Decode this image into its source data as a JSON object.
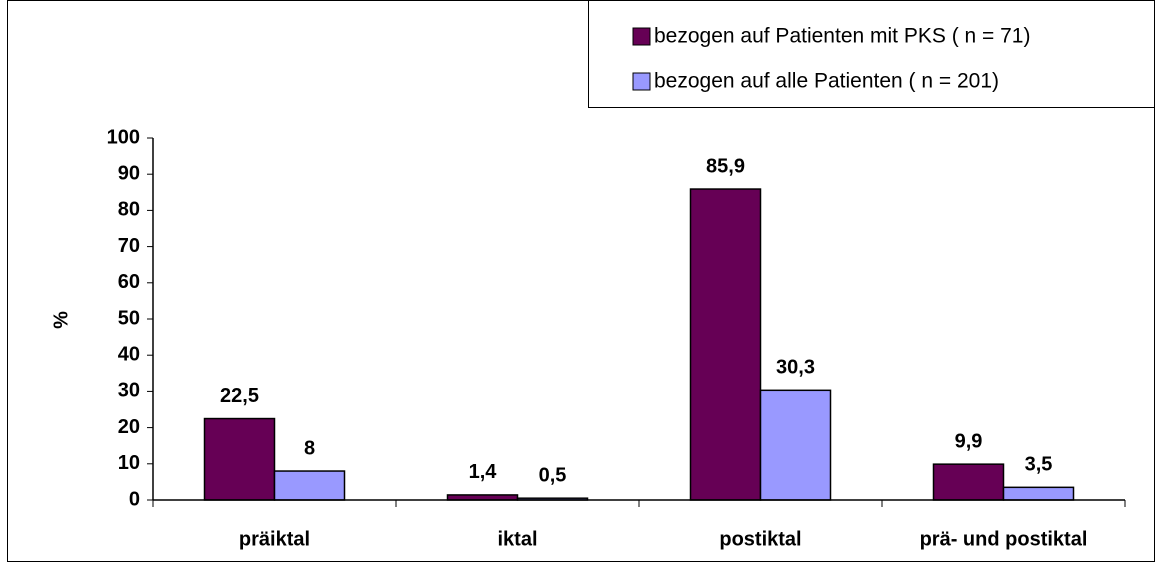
{
  "chart_data": {
    "type": "bar",
    "categories": [
      "präiktal",
      "iktal",
      "postiktal",
      "prä- und postiktal"
    ],
    "series": [
      {
        "name": "bezogen auf Patienten mit PKS ( n = 71)",
        "color": "#660055",
        "values": [
          22.5,
          1.4,
          85.9,
          9.9
        ],
        "value_labels": [
          "22,5",
          "1,4",
          "85,9",
          "9,9"
        ]
      },
      {
        "name": "bezogen auf alle Patienten ( n = 201)",
        "color": "#9999ff",
        "values": [
          8,
          0.5,
          30.3,
          3.5
        ],
        "value_labels": [
          "8",
          "0,5",
          "30,3",
          "3,5"
        ]
      }
    ],
    "y_label": "%",
    "ylim": [
      0,
      100
    ],
    "yticks": [
      0,
      10,
      20,
      30,
      40,
      50,
      60,
      70,
      80,
      90,
      100
    ],
    "legend": "top-right"
  }
}
